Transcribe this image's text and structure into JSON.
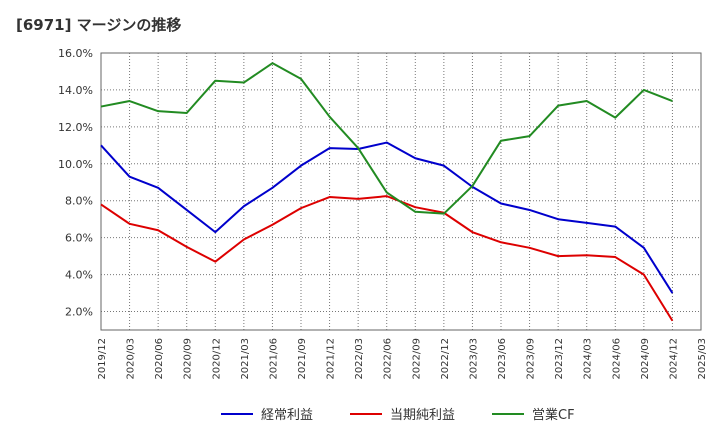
{
  "chart_data": {
    "type": "line",
    "title": "[6971]  マージンの推移",
    "xlabel": "",
    "ylabel": "",
    "ylim": [
      1.0,
      16.0
    ],
    "yticks": [
      "2.0%",
      "4.0%",
      "6.0%",
      "8.0%",
      "10.0%",
      "12.0%",
      "14.0%",
      "16.0%"
    ],
    "ytick_values": [
      2,
      4,
      6,
      8,
      10,
      12,
      14,
      16
    ],
    "categories": [
      "2019/12",
      "2020/03",
      "2020/06",
      "2020/09",
      "2020/12",
      "2021/03",
      "2021/06",
      "2021/09",
      "2021/12",
      "2022/03",
      "2022/06",
      "2022/09",
      "2022/12",
      "2023/03",
      "2023/06",
      "2023/09",
      "2023/12",
      "2024/03",
      "2024/06",
      "2024/09",
      "2024/12",
      "2025/03"
    ],
    "grid": true,
    "legend_position": "bottom",
    "series": [
      {
        "name": "経常利益",
        "color": "#0000cc",
        "values": [
          11.0,
          9.3,
          8.7,
          7.5,
          6.3,
          7.7,
          8.7,
          9.9,
          10.85,
          10.8,
          11.15,
          10.3,
          9.9,
          8.75,
          7.85,
          7.5,
          7.0,
          6.8,
          6.6,
          5.45,
          3.0,
          null
        ]
      },
      {
        "name": "当期純利益",
        "color": "#dd0000",
        "values": [
          7.8,
          6.75,
          6.4,
          5.5,
          4.7,
          5.9,
          6.7,
          7.6,
          8.2,
          8.1,
          8.25,
          7.65,
          7.35,
          6.3,
          5.75,
          5.45,
          5.0,
          5.05,
          4.95,
          4.0,
          1.5,
          null
        ]
      },
      {
        "name": "営業CF",
        "color": "#228b22",
        "values": [
          13.1,
          13.4,
          12.85,
          12.75,
          14.5,
          14.4,
          15.45,
          14.6,
          12.55,
          10.85,
          8.45,
          7.4,
          7.3,
          8.8,
          11.25,
          11.5,
          13.15,
          13.4,
          12.5,
          14.0,
          13.4,
          null
        ]
      }
    ]
  }
}
